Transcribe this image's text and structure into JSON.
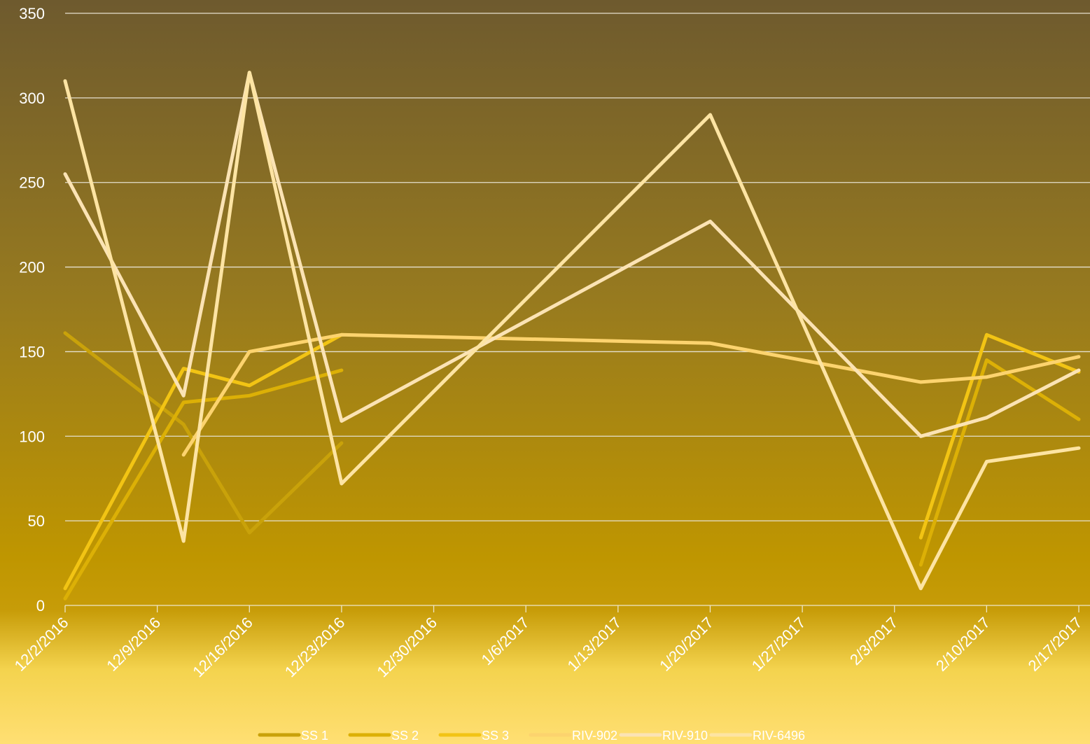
{
  "chart_data": {
    "type": "line",
    "title": "",
    "xlabel": "",
    "ylabel": "",
    "ylim": [
      0,
      350
    ],
    "yticks": [
      0,
      50,
      100,
      150,
      200,
      250,
      300,
      350
    ],
    "xlim": [
      "2016-12-02",
      "2017-02-17"
    ],
    "xtick_labels": [
      "12/2/2016",
      "12/9/2016",
      "12/16/2016",
      "12/23/2016",
      "12/30/2016",
      "1/6/2017",
      "1/13/2017",
      "1/20/2017",
      "1/27/2017",
      "2/3/2017",
      "2/10/2017",
      "2/17/2017"
    ],
    "grid": "horizontal",
    "legend_position": "bottom",
    "series": [
      {
        "name": "SS 1",
        "color": "#c9a20a",
        "points": [
          [
            "2016-12-02",
            161
          ],
          [
            "2016-12-11",
            107
          ],
          [
            "2016-12-16",
            43
          ],
          [
            "2016-12-23",
            96
          ]
        ]
      },
      {
        "name": "SS 2",
        "color": "#dcb006",
        "points": [
          [
            "2016-12-02",
            4
          ],
          [
            "2016-12-11",
            120
          ],
          [
            "2016-12-16",
            124
          ],
          [
            "2016-12-23",
            139
          ],
          null,
          [
            "2017-02-05",
            24
          ],
          [
            "2017-02-10",
            145
          ],
          [
            "2017-02-17",
            110
          ]
        ]
      },
      {
        "name": "SS 3",
        "color": "#f2c414",
        "points": [
          [
            "2016-12-02",
            10
          ],
          [
            "2016-12-11",
            140
          ],
          [
            "2016-12-16",
            130
          ],
          [
            "2016-12-23",
            160
          ],
          null,
          [
            "2017-02-05",
            40
          ],
          [
            "2017-02-10",
            160
          ],
          [
            "2017-02-17",
            138
          ]
        ]
      },
      {
        "name": "RIV-902",
        "color": "#fcd36e",
        "points": [
          [
            "2016-12-11",
            89
          ],
          [
            "2016-12-16",
            150
          ],
          [
            "2016-12-23",
            160
          ],
          [
            "2017-01-20",
            155
          ],
          [
            "2017-02-05",
            132
          ],
          [
            "2017-02-10",
            135
          ],
          [
            "2017-02-17",
            147
          ]
        ]
      },
      {
        "name": "RIV-910",
        "color": "#fbe3b4",
        "points": [
          [
            "2016-12-02",
            255
          ],
          [
            "2016-12-11",
            124
          ],
          [
            "2016-12-16",
            315
          ],
          [
            "2016-12-23",
            109
          ],
          [
            "2017-01-20",
            227
          ],
          [
            "2017-02-05",
            100
          ],
          [
            "2017-02-10",
            111
          ],
          [
            "2017-02-17",
            139
          ]
        ]
      },
      {
        "name": "RIV-6496",
        "color": "#fde4a3",
        "points": [
          [
            "2016-12-02",
            310
          ],
          [
            "2016-12-11",
            38
          ],
          [
            "2016-12-16",
            315
          ],
          [
            "2016-12-23",
            72
          ],
          [
            "2017-01-20",
            290
          ],
          [
            "2017-02-05",
            10
          ],
          [
            "2017-02-10",
            85
          ],
          [
            "2017-02-17",
            93
          ]
        ]
      }
    ]
  }
}
